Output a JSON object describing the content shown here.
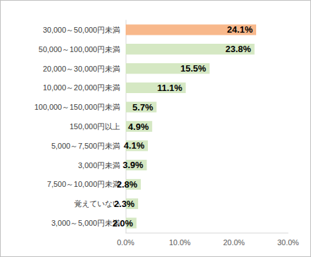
{
  "chart_data": {
    "type": "bar",
    "orientation": "horizontal",
    "categories": [
      "30,000～50,000円未満",
      "50,000～100,000円未満",
      "20,000～30,000円未満",
      "10,000～20,000円未満",
      "100,000～150,000円未満",
      "150,000円以上",
      "5,000～7,500円未満",
      "3,000円未満",
      "7,500～10,000円未満",
      "覚えていない",
      "3,000～5,000円未満"
    ],
    "values": [
      24.1,
      23.8,
      15.5,
      11.1,
      5.7,
      4.9,
      4.1,
      3.9,
      2.8,
      2.3,
      2.0
    ],
    "value_labels": [
      "24.1%",
      "23.8%",
      "15.5%",
      "11.1%",
      "5.7%",
      "4.9%",
      "4.1%",
      "3.9%",
      "2.8%",
      "2.3%",
      "2.0%"
    ],
    "colors": [
      "#f8b88b",
      "#d5e8c3",
      "#d5e8c3",
      "#d5e8c3",
      "#d5e8c3",
      "#d5e8c3",
      "#d5e8c3",
      "#d5e8c3",
      "#d5e8c3",
      "#d5e8c3",
      "#d5e8c3"
    ],
    "xlim": [
      0,
      30
    ],
    "xticks": [
      {
        "value": 0,
        "label": "0.0%"
      },
      {
        "value": 10,
        "label": "10.0%"
      },
      {
        "value": 20,
        "label": "20.0%"
      },
      {
        "value": 30,
        "label": "30.0%"
      }
    ],
    "grid": false,
    "data_labels": true
  }
}
